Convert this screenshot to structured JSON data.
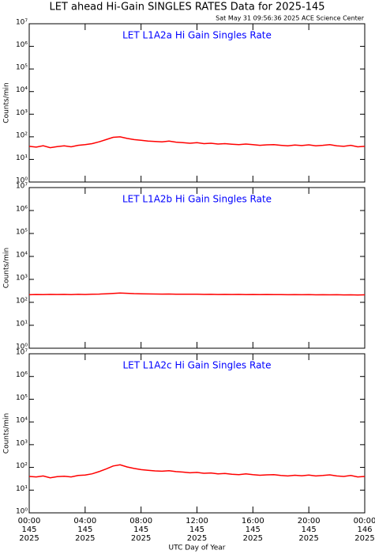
{
  "title": "LET ahead Hi-Gain SINGLES RATES Data for 2025-145",
  "subtitle": "Sat May 31 09:56:36 2025 ACE Science Center",
  "chart_data": [
    {
      "type": "line",
      "title": "LET L1A2a Hi Gain Singles Rate",
      "title_color": "#0000ff",
      "ylabel": "Counts/min",
      "log_y": true,
      "color": "#ff0000",
      "x": [
        0,
        0.5,
        1,
        1.5,
        2,
        2.5,
        3,
        3.5,
        4,
        4.5,
        5,
        5.5,
        6,
        6.5,
        7,
        7.5,
        8,
        8.5,
        9,
        9.5,
        10,
        10.5,
        11,
        11.5,
        12,
        12.5,
        13,
        13.5,
        14,
        14.5,
        15,
        15.5,
        16,
        16.5,
        17,
        17.5,
        18,
        18.5,
        19,
        19.5,
        20,
        20.5,
        21,
        21.5,
        22,
        22.5,
        23,
        23.5,
        24
      ],
      "values": [
        38,
        35,
        40,
        33,
        37,
        40,
        36,
        42,
        45,
        50,
        60,
        75,
        95,
        100,
        85,
        75,
        70,
        65,
        62,
        60,
        65,
        58,
        55,
        52,
        55,
        50,
        52,
        48,
        50,
        47,
        45,
        48,
        45,
        42,
        44,
        45,
        42,
        40,
        43,
        41,
        44,
        40,
        42,
        45,
        40,
        38,
        42,
        36,
        38
      ],
      "xlim": [
        0,
        24
      ],
      "ylim": [
        1,
        10000000
      ],
      "yticks": [
        {
          "value": 1,
          "label": "10⁰"
        },
        {
          "value": 10,
          "label": "10¹"
        },
        {
          "value": 100,
          "label": "10²"
        },
        {
          "value": 1000,
          "label": "10³"
        },
        {
          "value": 10000,
          "label": "10⁴"
        },
        {
          "value": 100000,
          "label": "10⁵"
        },
        {
          "value": 1000000,
          "label": "10⁶"
        },
        {
          "value": 10000000,
          "label": "10⁷"
        }
      ]
    },
    {
      "type": "line",
      "title": "LET L1A2b Hi Gain Singles Rate",
      "title_color": "#0000ff",
      "ylabel": "Counts/min",
      "log_y": true,
      "color": "#ff0000",
      "x": [
        0,
        0.5,
        1,
        1.5,
        2,
        2.5,
        3,
        3.5,
        4,
        4.5,
        5,
        5.5,
        6,
        6.5,
        7,
        7.5,
        8,
        8.5,
        9,
        9.5,
        10,
        10.5,
        11,
        11.5,
        12,
        12.5,
        13,
        13.5,
        14,
        14.5,
        15,
        15.5,
        16,
        16.5,
        17,
        17.5,
        18,
        18.5,
        19,
        19.5,
        20,
        20.5,
        21,
        21.5,
        22,
        22.5,
        23,
        23.5,
        24
      ],
      "values": [
        215,
        220,
        218,
        222,
        219,
        221,
        217,
        223,
        220,
        225,
        228,
        235,
        245,
        255,
        248,
        240,
        235,
        232,
        230,
        228,
        230,
        226,
        225,
        224,
        226,
        222,
        223,
        220,
        222,
        219,
        221,
        218,
        220,
        217,
        219,
        216,
        218,
        215,
        217,
        214,
        216,
        213,
        215,
        212,
        214,
        211,
        213,
        210,
        212
      ],
      "xlim": [
        0,
        24
      ],
      "ylim": [
        1,
        10000000
      ],
      "yticks": [
        {
          "value": 1,
          "label": "10⁰"
        },
        {
          "value": 10,
          "label": "10¹"
        },
        {
          "value": 100,
          "label": "10²"
        },
        {
          "value": 1000,
          "label": "10³"
        },
        {
          "value": 10000,
          "label": "10⁴"
        },
        {
          "value": 100000,
          "label": "10⁵"
        },
        {
          "value": 1000000,
          "label": "10⁶"
        },
        {
          "value": 10000000,
          "label": "10⁷"
        }
      ]
    },
    {
      "type": "line",
      "title": "LET L1A2c Hi Gain Singles Rate",
      "title_color": "#0000ff",
      "ylabel": "Counts/min",
      "log_y": true,
      "xlabel": "UTC Day of Year",
      "color": "#ff0000",
      "x": [
        0,
        0.5,
        1,
        1.5,
        2,
        2.5,
        3,
        3.5,
        4,
        4.5,
        5,
        5.5,
        6,
        6.5,
        7,
        7.5,
        8,
        8.5,
        9,
        9.5,
        10,
        10.5,
        11,
        11.5,
        12,
        12.5,
        13,
        13.5,
        14,
        14.5,
        15,
        15.5,
        16,
        16.5,
        17,
        17.5,
        18,
        18.5,
        19,
        19.5,
        20,
        20.5,
        21,
        21.5,
        22,
        22.5,
        23,
        23.5,
        24
      ],
      "values": [
        40,
        38,
        42,
        35,
        39,
        41,
        38,
        44,
        46,
        52,
        65,
        85,
        115,
        130,
        105,
        90,
        80,
        75,
        70,
        68,
        72,
        65,
        62,
        58,
        60,
        55,
        57,
        52,
        54,
        50,
        48,
        52,
        48,
        45,
        47,
        48,
        44,
        42,
        45,
        43,
        46,
        42,
        44,
        47,
        42,
        40,
        44,
        38,
        40
      ],
      "xlim": [
        0,
        24
      ],
      "ylim": [
        1,
        10000000
      ],
      "xticks": [
        {
          "value": 0,
          "label": "00:00\n145\n2025"
        },
        {
          "value": 4,
          "label": "04:00\n145\n2025"
        },
        {
          "value": 8,
          "label": "08:00\n145\n2025"
        },
        {
          "value": 12,
          "label": "12:00\n145\n2025"
        },
        {
          "value": 16,
          "label": "16:00\n145\n2025"
        },
        {
          "value": 20,
          "label": "20:00\n145\n2025"
        },
        {
          "value": 24,
          "label": "00:00\n146\n2025"
        }
      ],
      "yticks": [
        {
          "value": 1,
          "label": "10⁰"
        },
        {
          "value": 10,
          "label": "10¹"
        },
        {
          "value": 100,
          "label": "10²"
        },
        {
          "value": 1000,
          "label": "10³"
        },
        {
          "value": 10000,
          "label": "10⁴"
        },
        {
          "value": 100000,
          "label": "10⁵"
        },
        {
          "value": 1000000,
          "label": "10⁶"
        },
        {
          "value": 10000000,
          "label": "10⁷"
        }
      ]
    }
  ]
}
